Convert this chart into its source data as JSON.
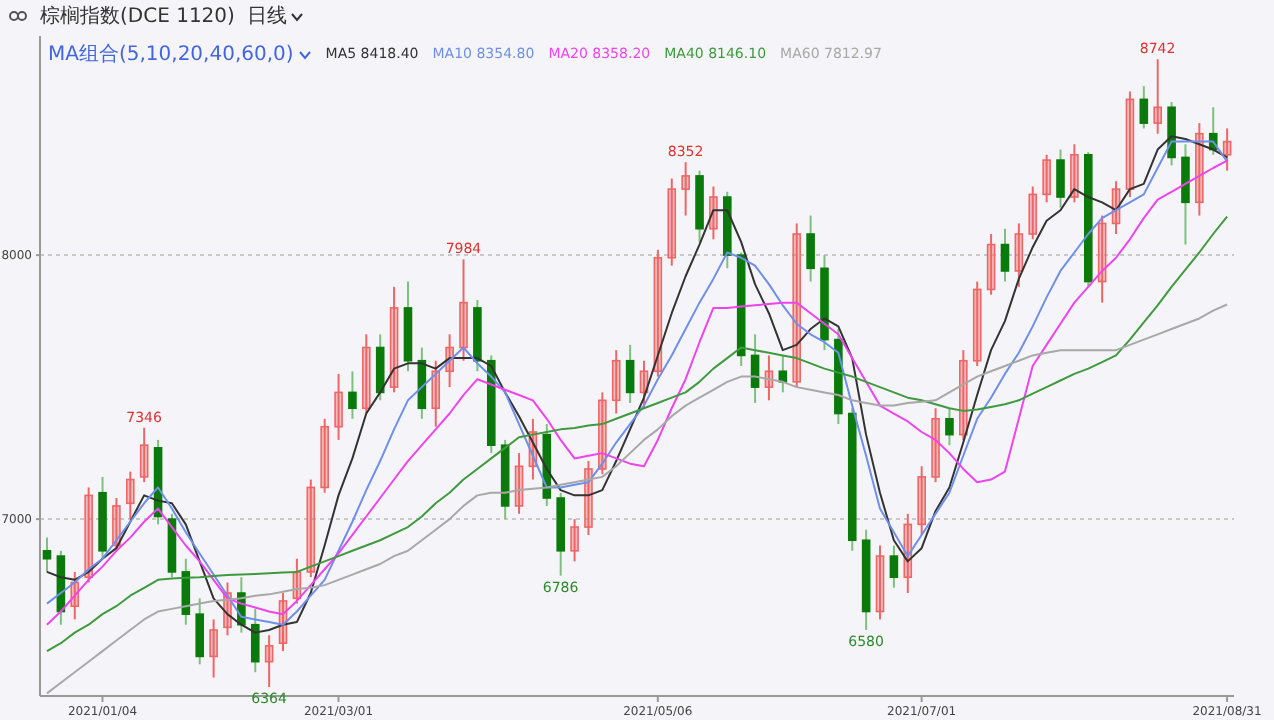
{
  "chart_data": {
    "type": "candlestick",
    "title": "棕榈指数(DCE 1120)",
    "subtitle": "日线",
    "legend_title": "MA组合(5,10,20,40,60,0)",
    "categories": [
      null,
      null,
      null,
      null,
      "2021/01/04",
      null,
      null,
      null,
      null,
      null,
      null,
      null,
      null,
      null,
      null,
      null,
      null,
      null,
      null,
      null,
      null,
      "2021/03/01",
      null,
      null,
      null,
      null,
      null,
      null,
      null,
      null,
      null,
      null,
      null,
      null,
      null,
      null,
      null,
      null,
      null,
      null,
      null,
      null,
      null,
      null,
      "2021/05/06",
      null,
      null,
      null,
      null,
      null,
      null,
      null,
      null,
      null,
      null,
      null,
      null,
      null,
      null,
      null,
      null,
      null,
      null,
      "2021/07/01",
      null,
      null,
      null,
      null,
      null,
      null,
      null,
      null,
      null,
      null,
      null,
      null,
      null,
      null,
      null,
      null,
      null,
      null,
      null,
      null,
      null,
      "2021/08/31"
    ],
    "ohlc": [
      [
        6880,
        6930,
        6800,
        6850
      ],
      [
        6860,
        6880,
        6600,
        6650
      ],
      [
        6670,
        6800,
        6620,
        6760
      ],
      [
        6780,
        7120,
        6760,
        7090
      ],
      [
        7100,
        7160,
        6850,
        6880
      ],
      [
        6900,
        7080,
        6880,
        7050
      ],
      [
        7060,
        7180,
        7000,
        7150
      ],
      [
        7160,
        7346,
        7140,
        7280
      ],
      [
        7270,
        7300,
        6980,
        7010
      ],
      [
        7000,
        7020,
        6780,
        6800
      ],
      [
        6800,
        6850,
        6600,
        6640
      ],
      [
        6640,
        6700,
        6450,
        6480
      ],
      [
        6480,
        6620,
        6400,
        6580
      ],
      [
        6590,
        6760,
        6560,
        6720
      ],
      [
        6720,
        6780,
        6570,
        6600
      ],
      [
        6600,
        6660,
        6420,
        6460
      ],
      [
        6460,
        6560,
        6364,
        6520
      ],
      [
        6530,
        6720,
        6500,
        6690
      ],
      [
        6700,
        6850,
        6680,
        6800
      ],
      [
        6800,
        7150,
        6780,
        7120
      ],
      [
        7120,
        7380,
        7100,
        7350
      ],
      [
        7350,
        7550,
        7300,
        7480
      ],
      [
        7480,
        7560,
        7380,
        7420
      ],
      [
        7420,
        7700,
        7400,
        7650
      ],
      [
        7650,
        7700,
        7450,
        7480
      ],
      [
        7500,
        7880,
        7480,
        7800
      ],
      [
        7800,
        7900,
        7560,
        7600
      ],
      [
        7600,
        7650,
        7380,
        7420
      ],
      [
        7420,
        7600,
        7350,
        7560
      ],
      [
        7560,
        7700,
        7500,
        7650
      ],
      [
        7650,
        7984,
        7600,
        7820
      ],
      [
        7800,
        7830,
        7560,
        7600
      ],
      [
        7600,
        7620,
        7250,
        7280
      ],
      [
        7280,
        7300,
        7000,
        7050
      ],
      [
        7050,
        7250,
        7020,
        7200
      ],
      [
        7200,
        7380,
        7150,
        7330
      ],
      [
        7320,
        7360,
        7050,
        7080
      ],
      [
        7080,
        7100,
        6786,
        6880
      ],
      [
        6880,
        7000,
        6840,
        6970
      ],
      [
        6970,
        7220,
        6940,
        7190
      ],
      [
        7190,
        7480,
        7170,
        7450
      ],
      [
        7450,
        7640,
        7400,
        7600
      ],
      [
        7600,
        7660,
        7440,
        7480
      ],
      [
        7480,
        7600,
        7420,
        7560
      ],
      [
        7560,
        8020,
        7540,
        7990
      ],
      [
        7990,
        8290,
        7960,
        8250
      ],
      [
        8250,
        8352,
        8150,
        8300
      ],
      [
        8300,
        8320,
        8050,
        8100
      ],
      [
        8100,
        8260,
        8060,
        8220
      ],
      [
        8220,
        8240,
        7950,
        8000
      ],
      [
        8000,
        8010,
        7580,
        7620
      ],
      [
        7620,
        7700,
        7440,
        7500
      ],
      [
        7500,
        7620,
        7450,
        7560
      ],
      [
        7560,
        7620,
        7480,
        7520
      ],
      [
        7520,
        8120,
        7500,
        8080
      ],
      [
        8080,
        8150,
        7900,
        7950
      ],
      [
        7950,
        8000,
        7640,
        7680
      ],
      [
        7680,
        7720,
        7360,
        7400
      ],
      [
        7400,
        7420,
        6880,
        6920
      ],
      [
        6920,
        6960,
        6580,
        6650
      ],
      [
        6650,
        6900,
        6620,
        6860
      ],
      [
        6860,
        6900,
        6740,
        6780
      ],
      [
        6780,
        7020,
        6720,
        6980
      ],
      [
        6980,
        7200,
        6940,
        7160
      ],
      [
        7160,
        7420,
        7140,
        7380
      ],
      [
        7380,
        7420,
        7280,
        7320
      ],
      [
        7320,
        7640,
        7300,
        7600
      ],
      [
        7600,
        7900,
        7580,
        7870
      ],
      [
        7870,
        8080,
        7850,
        8040
      ],
      [
        8040,
        8100,
        7900,
        7940
      ],
      [
        7940,
        8120,
        7880,
        8080
      ],
      [
        8080,
        8260,
        8060,
        8230
      ],
      [
        8230,
        8380,
        8200,
        8360
      ],
      [
        8360,
        8400,
        8180,
        8220
      ],
      [
        8220,
        8420,
        8200,
        8380
      ],
      [
        8380,
        8390,
        7880,
        7900
      ],
      [
        7900,
        8150,
        7820,
        8120
      ],
      [
        8120,
        8280,
        8080,
        8250
      ],
      [
        8250,
        8620,
        8220,
        8590
      ],
      [
        8590,
        8640,
        8480,
        8500
      ],
      [
        8500,
        8742,
        8460,
        8560
      ],
      [
        8560,
        8580,
        8340,
        8370
      ],
      [
        8370,
        8420,
        8040,
        8200
      ],
      [
        8200,
        8500,
        8150,
        8460
      ],
      [
        8460,
        8560,
        8380,
        8400
      ],
      [
        8380,
        8480,
        8320,
        8430
      ]
    ],
    "colors": [
      "#0a7a0a",
      "#0a7a0a",
      "#ee6666",
      "#ee6666",
      "#0a7a0a",
      "#ee6666",
      "#ee6666",
      "#ee6666",
      "#0a7a0a",
      "#0a7a0a",
      "#0a7a0a",
      "#0a7a0a",
      "#ee6666",
      "#ee6666",
      "#0a7a0a",
      "#0a7a0a",
      "#ee6666",
      "#ee6666",
      "#ee6666",
      "#ee6666",
      "#ee6666",
      "#ee6666",
      "#0a7a0a",
      "#ee6666",
      "#0a7a0a",
      "#ee6666",
      "#0a7a0a",
      "#0a7a0a",
      "#ee6666",
      "#ee6666",
      "#ee6666",
      "#0a7a0a",
      "#0a7a0a",
      "#0a7a0a",
      "#ee6666",
      "#ee6666",
      "#0a7a0a",
      "#0a7a0a",
      "#ee6666",
      "#ee6666",
      "#ee6666",
      "#ee6666",
      "#0a7a0a",
      "#ee6666",
      "#ee6666",
      "#ee6666",
      "#ee6666",
      "#0a7a0a",
      "#ee6666",
      "#0a7a0a",
      "#0a7a0a",
      "#0a7a0a",
      "#ee6666",
      "#0a7a0a",
      "#ee6666",
      "#0a7a0a",
      "#0a7a0a",
      "#0a7a0a",
      "#0a7a0a",
      "#0a7a0a",
      "#ee6666",
      "#0a7a0a",
      "#ee6666",
      "#ee6666",
      "#ee6666",
      "#0a7a0a",
      "#ee6666",
      "#ee6666",
      "#ee6666",
      "#0a7a0a",
      "#ee6666",
      "#ee6666",
      "#ee6666",
      "#0a7a0a",
      "#ee6666",
      "#0a7a0a",
      "#ee6666",
      "#ee6666",
      "#ee6666",
      "#0a7a0a",
      "#ee6666",
      "#0a7a0a",
      "#0a7a0a",
      "#ee6666",
      "#0a7a0a",
      "#ee6666"
    ],
    "series": [
      {
        "type": "line",
        "name": "MA5 8418.40",
        "color": "#333333",
        "values": [
          6800,
          6780,
          6770,
          6800,
          6850,
          6890,
          6990,
          7090,
          7070,
          7060,
          6980,
          6840,
          6700,
          6640,
          6600,
          6570,
          6580,
          6600,
          6610,
          6720,
          6900,
          7090,
          7230,
          7400,
          7480,
          7570,
          7590,
          7590,
          7570,
          7610,
          7610,
          7610,
          7580,
          7480,
          7390,
          7290,
          7190,
          7110,
          7090,
          7090,
          7110,
          7220,
          7340,
          7460,
          7620,
          7780,
          7920,
          8040,
          8170,
          8170,
          8050,
          7890,
          7780,
          7640,
          7660,
          7720,
          7760,
          7730,
          7610,
          7320,
          7100,
          6920,
          6840,
          6890,
          7030,
          7120,
          7290,
          7470,
          7640,
          7750,
          7910,
          8030,
          8130,
          8170,
          8250,
          8220,
          8200,
          8170,
          8250,
          8270,
          8400,
          8450,
          8440,
          8420,
          8400,
          8370
        ]
      },
      {
        "type": "line",
        "name": "MA10 8354.80",
        "color": "#6f8fe8",
        "values": [
          6680,
          6720,
          6760,
          6810,
          6850,
          6920,
          6990,
          7060,
          7120,
          7040,
          6950,
          6870,
          6790,
          6710,
          6630,
          6620,
          6610,
          6600,
          6650,
          6710,
          6770,
          6880,
          6990,
          7110,
          7220,
          7340,
          7450,
          7500,
          7550,
          7600,
          7650,
          7590,
          7540,
          7480,
          7360,
          7240,
          7120,
          7120,
          7130,
          7140,
          7210,
          7290,
          7360,
          7430,
          7530,
          7620,
          7720,
          7820,
          7910,
          8010,
          7990,
          7960,
          7890,
          7810,
          7740,
          7700,
          7670,
          7630,
          7430,
          7240,
          7040,
          6950,
          6860,
          6940,
          7020,
          7100,
          7240,
          7380,
          7460,
          7550,
          7630,
          7730,
          7840,
          7940,
          8010,
          8080,
          8140,
          8170,
          8200,
          8230,
          8330,
          8430,
          8430,
          8430,
          8430,
          8355
        ]
      },
      {
        "type": "line",
        "name": "MA20 8358.20",
        "color": "#ee44ee",
        "values": [
          6600,
          6650,
          6710,
          6770,
          6820,
          6880,
          6930,
          6990,
          7040,
          6970,
          6900,
          6840,
          6770,
          6700,
          6680,
          6665,
          6650,
          6640,
          6690,
          6750,
          6810,
          6870,
          6940,
          7010,
          7080,
          7150,
          7220,
          7280,
          7340,
          7400,
          7470,
          7530,
          7510,
          7490,
          7470,
          7450,
          7380,
          7300,
          7230,
          7240,
          7250,
          7230,
          7210,
          7200,
          7300,
          7420,
          7530,
          7670,
          7800,
          7800,
          7805,
          7810,
          7815,
          7820,
          7820,
          7780,
          7740,
          7700,
          7610,
          7520,
          7430,
          7400,
          7370,
          7330,
          7300,
          7250,
          7190,
          7140,
          7150,
          7180,
          7380,
          7580,
          7660,
          7740,
          7820,
          7880,
          7940,
          7990,
          8060,
          8140,
          8210,
          8240,
          8270,
          8300,
          8330,
          8358
        ]
      },
      {
        "type": "line",
        "name": "MA40 8146.10",
        "color": "#3f9a3f",
        "values": [
          6500,
          6530,
          6570,
          6600,
          6640,
          6670,
          6710,
          6740,
          6770,
          6775,
          6778,
          6780,
          6785,
          6788,
          6790,
          6792,
          6795,
          6798,
          6800,
          6820,
          6840,
          6860,
          6880,
          6900,
          6920,
          6945,
          6970,
          7010,
          7060,
          7100,
          7150,
          7190,
          7230,
          7270,
          7310,
          7320,
          7330,
          7340,
          7345,
          7355,
          7360,
          7380,
          7400,
          7420,
          7440,
          7460,
          7480,
          7520,
          7570,
          7610,
          7650,
          7640,
          7630,
          7620,
          7610,
          7590,
          7570,
          7555,
          7540,
          7520,
          7500,
          7480,
          7460,
          7450,
          7435,
          7420,
          7410,
          7415,
          7425,
          7435,
          7450,
          7475,
          7500,
          7525,
          7550,
          7570,
          7595,
          7620,
          7680,
          7745,
          7810,
          7880,
          7945,
          8010,
          8080,
          8146
        ]
      },
      {
        "type": "line",
        "name": "MA60 7812.97",
        "color": "#a8a8a8",
        "values": [
          6340,
          6380,
          6420,
          6460,
          6500,
          6540,
          6580,
          6620,
          6650,
          6660,
          6670,
          6680,
          6690,
          6695,
          6700,
          6710,
          6715,
          6725,
          6735,
          6740,
          6750,
          6770,
          6790,
          6810,
          6830,
          6860,
          6880,
          6920,
          6960,
          7000,
          7050,
          7090,
          7100,
          7100,
          7110,
          7115,
          7120,
          7130,
          7140,
          7150,
          7160,
          7200,
          7250,
          7300,
          7340,
          7390,
          7430,
          7460,
          7490,
          7520,
          7540,
          7540,
          7530,
          7520,
          7500,
          7490,
          7480,
          7470,
          7450,
          7440,
          7430,
          7430,
          7440,
          7445,
          7450,
          7480,
          7510,
          7540,
          7560,
          7580,
          7600,
          7620,
          7630,
          7640,
          7640,
          7640,
          7640,
          7640,
          7660,
          7680,
          7700,
          7720,
          7740,
          7760,
          7790,
          7813
        ]
      }
    ],
    "ylim": [
      6330,
      8830
    ],
    "yticks": [
      7000,
      8000
    ],
    "grid": "y",
    "legend": "top left",
    "line_style": "solid",
    "marker": "none",
    "annotations": [
      {
        "text": "7346",
        "y": 7346
      },
      {
        "text": "6364",
        "y": 6364
      },
      {
        "text": "7984",
        "y": 7984
      },
      {
        "text": "6786",
        "y": 6786
      },
      {
        "text": "8352",
        "y": 8352
      },
      {
        "text": "6580",
        "y": 6580
      },
      {
        "text": "8742",
        "y": 8742
      }
    ]
  }
}
